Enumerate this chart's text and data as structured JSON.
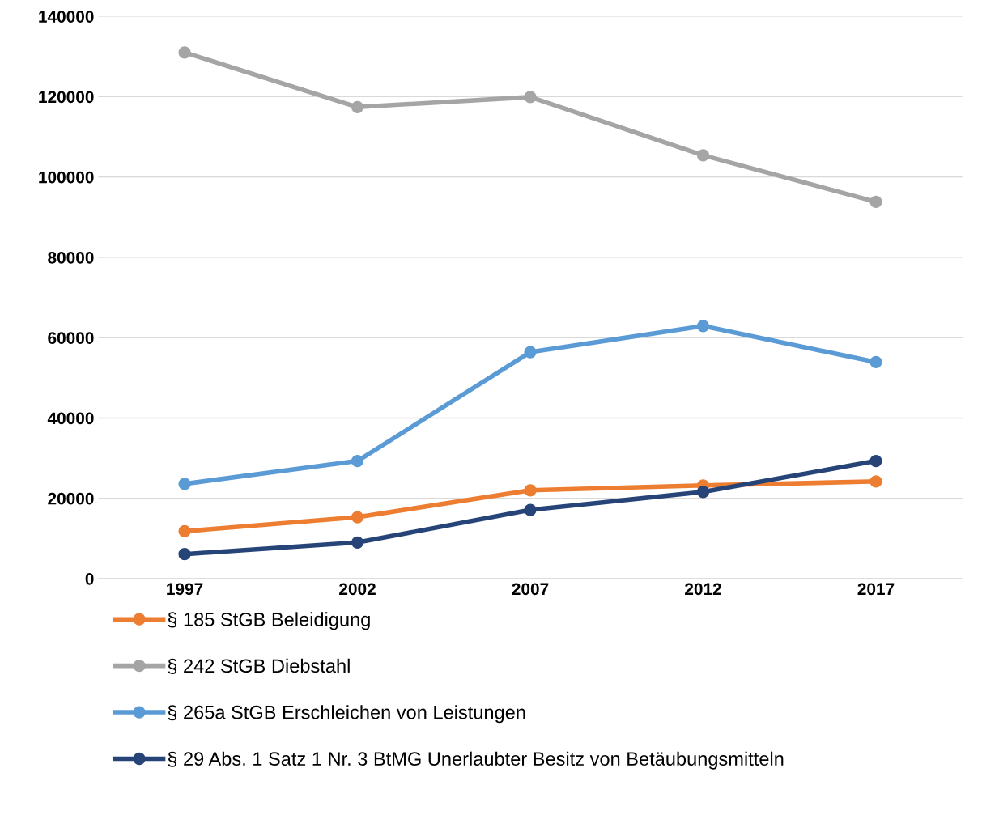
{
  "chart_data": {
    "type": "line",
    "categories": [
      "1997",
      "2002",
      "2007",
      "2012",
      "2017"
    ],
    "series": [
      {
        "name": "§ 185 StGB Beleidigung",
        "color": "#ed7d31",
        "values": [
          11800,
          15300,
          22000,
          23200,
          24200
        ]
      },
      {
        "name": "§ 242 StGB Diebstahl",
        "color": "#a5a5a5",
        "values": [
          131000,
          117400,
          119900,
          105400,
          93800
        ]
      },
      {
        "name": "§ 265a StGB Erschleichen von Leistungen",
        "color": "#5b9bd5",
        "values": [
          23600,
          29300,
          56400,
          62900,
          53900
        ]
      },
      {
        "name": "§ 29 Abs. 1 Satz 1 Nr. 3 BtMG Unerlaubter Besitz von Betäubungsmitteln",
        "color": "#264478",
        "values": [
          6100,
          9000,
          17100,
          21600,
          29300
        ]
      }
    ],
    "ylim": [
      0,
      140000
    ],
    "yticks": [
      0,
      20000,
      40000,
      60000,
      80000,
      100000,
      120000,
      140000
    ],
    "grid": "y",
    "legend": "bottom",
    "marker": "circle",
    "line_style": "solid"
  }
}
